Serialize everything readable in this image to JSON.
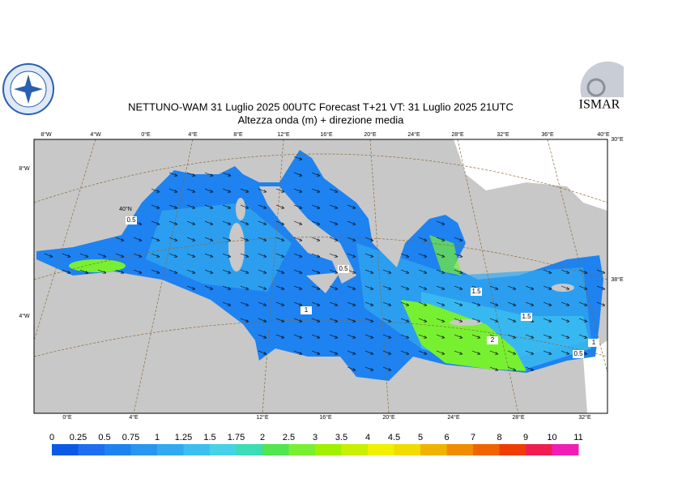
{
  "header": {
    "title": "NETTUNO-WAM  31  Luglio   2025 00UTC Forecast T+21 VT: 31  Luglio   2025 21UTC",
    "subtitle": "Altezza onda (m) + direzione media"
  },
  "logo": {
    "text": "ISMAR"
  },
  "map": {
    "top_labels": [
      "8°W",
      "4°W",
      "0°E",
      "4°E",
      "8°E",
      "12°E",
      "16°E",
      "20°E",
      "24°E",
      "28°E",
      "32°E",
      "36°E",
      "40°E"
    ],
    "bottom_labels": [
      "0°E",
      "4°E",
      "12°E",
      "16°E",
      "20°E",
      "24°E",
      "28°E",
      "32°E"
    ],
    "left_labels": [
      "8°W",
      "4°W"
    ],
    "right_labels": [
      "30°E",
      "38°E"
    ],
    "lat_label": "40°N",
    "contour_labels": [
      "0.5",
      "0.5",
      "1",
      "1.5",
      "1.5",
      "2",
      "1",
      "0.5"
    ]
  },
  "colorbar": {
    "labels": [
      0,
      0.25,
      0.5,
      0.75,
      1,
      1.25,
      1.5,
      1.75,
      2,
      2.5,
      3,
      3.5,
      4,
      4.5,
      5,
      6,
      7,
      8,
      9,
      10,
      11
    ],
    "colors": [
      "#0a5ae6",
      "#1e6ef0",
      "#1e82f0",
      "#2896f0",
      "#32aaf0",
      "#3cbef0",
      "#46d2e6",
      "#3cdcb4",
      "#50e650",
      "#78f032",
      "#a0f000",
      "#c8f000",
      "#f0f000",
      "#f0dc00",
      "#f0b400",
      "#f08c00",
      "#f06400",
      "#f03c00",
      "#f01e50",
      "#f01eb4"
    ]
  }
}
